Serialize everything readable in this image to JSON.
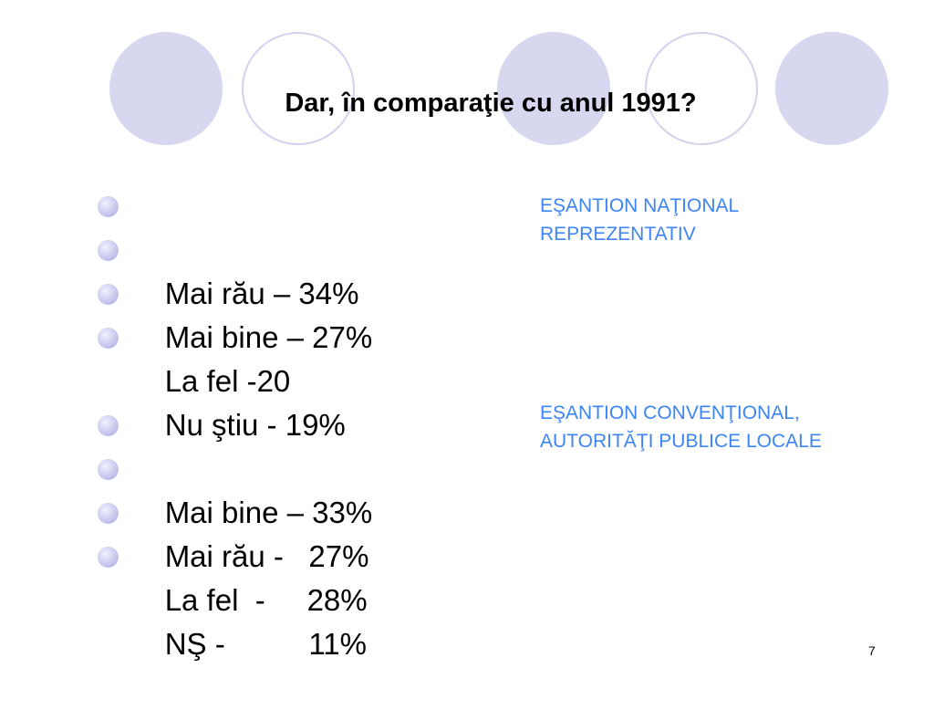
{
  "slide": {
    "title": "Dar, în comparaţie cu anul 1991?",
    "page_number": "7"
  },
  "group1": {
    "items": [
      "Mai rău – 34%",
      "Mai bine – 27%",
      "La fel -20",
      "Nu ştiu - 19%"
    ],
    "note_line1": "EŞANTION NAŢIONAL",
    "note_line2": "REPREZENTATIV"
  },
  "group2": {
    "items": [
      "Mai bine – 33%",
      "Mai rău -   27%",
      "La fel  -     28%",
      "NŞ -          11%"
    ],
    "note_line1": "EŞANTION CONVENŢIONAL,",
    "note_line2": "AUTORITĂŢI PUBLICE LOCALE"
  },
  "colors": {
    "note_text": "#3d84f5",
    "circle_fill": "#d7d7f0",
    "circle_outline": "#d3d3ee"
  }
}
